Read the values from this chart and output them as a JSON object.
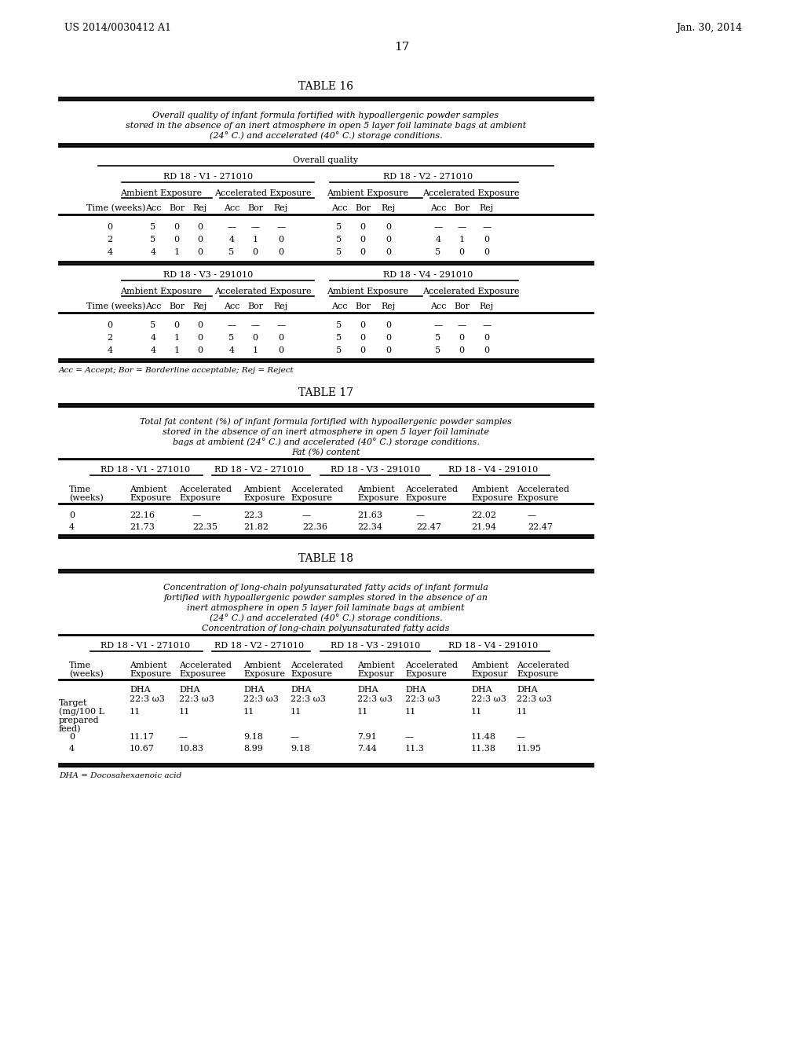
{
  "background_color": "#ffffff",
  "page_number": "17",
  "header_left": "US 2014/0030412 A1",
  "header_right": "Jan. 30, 2014",
  "table16_title": "TABLE 16",
  "table16_caption_lines": [
    "Overall quality of infant formula fortified with hypoallergenic powder samples",
    "stored in the absence of an inert atmosphere in open 5 layer foil laminate bags at ambient",
    "(24° C.) and accelerated (40° C.) storage conditions."
  ],
  "table16_subheader": "Overall quality",
  "table16_group1": "RD 18 - V1 - 271010",
  "table16_group2": "RD 18 - V2 - 271010",
  "table16_group3": "RD 18 - V3 - 291010",
  "table16_group4": "RD 18 - V4 - 291010",
  "table16_exposure1": "Ambient Exposure",
  "table16_exposure2": "Accelerated Exposure",
  "table16_data_top": [
    [
      "0",
      "5",
      "0",
      "0",
      "—",
      "—",
      "—",
      "5",
      "0",
      "0",
      "—",
      "—",
      "—"
    ],
    [
      "2",
      "5",
      "0",
      "0",
      "4",
      "1",
      "0",
      "5",
      "0",
      "0",
      "4",
      "1",
      "0"
    ],
    [
      "4",
      "4",
      "1",
      "0",
      "5",
      "0",
      "0",
      "5",
      "0",
      "0",
      "5",
      "0",
      "0"
    ]
  ],
  "table16_data_bot": [
    [
      "0",
      "5",
      "0",
      "0",
      "—",
      "—",
      "—",
      "5",
      "0",
      "0",
      "—",
      "—",
      "—"
    ],
    [
      "2",
      "4",
      "1",
      "0",
      "5",
      "0",
      "0",
      "5",
      "0",
      "0",
      "5",
      "0",
      "0"
    ],
    [
      "4",
      "4",
      "1",
      "0",
      "4",
      "1",
      "0",
      "5",
      "0",
      "0",
      "5",
      "0",
      "0"
    ]
  ],
  "table16_footnote": "Acc = Accept; Bor = Borderline acceptable; Rej = Reject",
  "table17_title": "TABLE 17",
  "table17_caption_lines": [
    "Total fat content (%) of infant formula fortified with hypoallergenic powder samples",
    "stored in the absence of an inert atmosphere in open 5 layer foil laminate",
    "bags at ambient (24° C.) and accelerated (40° C.) storage conditions.",
    "Fat (%) content"
  ],
  "table17_group1": "RD 18 - V1 - 271010",
  "table17_group2": "RD 18 - V2 - 271010",
  "table17_group3": "RD 18 - V3 - 291010",
  "table17_group4": "RD 18 - V4 - 291010",
  "table17_data": [
    [
      "0",
      "22.16",
      "—",
      "22.3",
      "—",
      "21.63",
      "—",
      "22.02",
      "—"
    ],
    [
      "4",
      "21.73",
      "22.35",
      "21.82",
      "22.36",
      "22.34",
      "22.47",
      "21.94",
      "22.47"
    ]
  ],
  "table18_title": "TABLE 18",
  "table18_caption_lines": [
    "Concentration of long-chain polyunsaturated fatty acids of infant formula",
    "fortified with hypoallergenic powder samples stored in the absence of an",
    "inert atmosphere in open 5 layer foil laminate bags at ambient",
    "(24° C.) and accelerated (40° C.) storage conditions.",
    "Concentration of long-chain polyunsaturated fatty acids"
  ],
  "table18_group1": "RD 18 - V1 - 271010",
  "table18_group2": "RD 18 - V2 - 271010",
  "table18_group3": "RD 18 - V3 - 291010",
  "table18_group4": "RD 18 - V4 - 291010",
  "table18_target_val": "11",
  "table18_data": [
    [
      "0",
      "11.17",
      "—",
      "9.18",
      "—",
      "7.91",
      "—",
      "11.48",
      "—"
    ],
    [
      "4",
      "10.67",
      "10.83",
      "8.99",
      "9.18",
      "7.44",
      "11.3",
      "11.38",
      "11.95"
    ]
  ],
  "table18_footnote": "DHA = Docosahexaenoic acid"
}
